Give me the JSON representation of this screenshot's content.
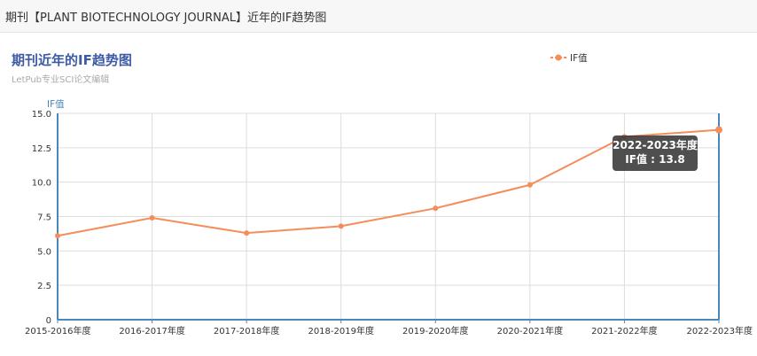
{
  "header": {
    "title": "期刊【PLANT BIOTECHNOLOGY JOURNAL】近年的IF趋势图"
  },
  "colors": {
    "line": "#f58d5b",
    "axis": "#4a87bd",
    "grid": "#dddddd",
    "title": "#3d5aa6"
  },
  "tooltip": {
    "category": "2022-2023年度",
    "value_text": "IF值 : 13.8"
  },
  "chart_data": {
    "type": "line",
    "title": "期刊近年的IF趋势图",
    "subtitle": "LetPub专业SCI论文编辑",
    "ylabel": "IF值",
    "xlabel": "",
    "categories": [
      "2015-2016年度",
      "2016-2017年度",
      "2017-2018年度",
      "2018-2019年度",
      "2019-2020年度",
      "2020-2021年度",
      "2021-2022年度",
      "2022-2023年度"
    ],
    "series": [
      {
        "name": "IF值",
        "values": [
          6.1,
          7.4,
          6.3,
          6.8,
          8.1,
          9.8,
          13.3,
          13.8
        ]
      }
    ],
    "ylim": [
      0,
      15
    ],
    "yticks": [
      "0",
      "2.5",
      "5.0",
      "7.5",
      "10.0",
      "12.5",
      "15.0"
    ],
    "grid": true,
    "legend_position": "top-right"
  }
}
